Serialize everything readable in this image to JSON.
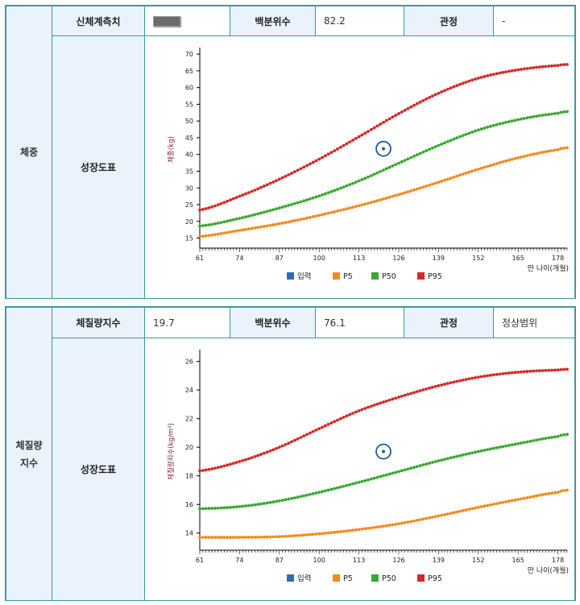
{
  "panels": [
    {
      "category": "체중",
      "measure_label": "신체계측치",
      "measure_value": "",
      "percentile_label": "백분위수",
      "percentile_value": "82.2",
      "judgement_label": "관정",
      "judgement_value": "-",
      "chart_label": "성장도표",
      "chart_data": {
        "type": "line",
        "ylabel": "체중(kg)",
        "xlabel": "만 나이(개월)",
        "x_ticks": [
          "61",
          "74",
          "87",
          "100",
          "113",
          "126",
          "139",
          "152",
          "165",
          "178"
        ],
        "y_ticks": [
          "15",
          "20",
          "25",
          "30",
          "35",
          "40",
          "45",
          "50",
          "55",
          "60",
          "65",
          "70"
        ],
        "xlim": [
          61,
          181
        ],
        "ylim": [
          12,
          71
        ],
        "series": [
          {
            "name": "P5",
            "color": "#f28a1e",
            "x": [
              61,
              74,
              87,
              100,
              113,
              126,
              139,
              152,
              165,
              178,
              181
            ],
            "values": [
              15.5,
              17.3,
              19.3,
              21.8,
              24.7,
              28.0,
              31.7,
              35.6,
              39.0,
              41.4,
              42.0
            ]
          },
          {
            "name": "P50",
            "color": "#3aa832",
            "x": [
              61,
              74,
              87,
              100,
              113,
              126,
              139,
              152,
              165,
              178,
              181
            ],
            "values": [
              18.6,
              20.9,
              24.0,
              27.6,
              32.1,
              37.4,
              42.7,
              47.3,
              50.4,
              52.3,
              52.8
            ]
          },
          {
            "name": "P95",
            "color": "#d42a2a",
            "x": [
              61,
              74,
              87,
              100,
              113,
              126,
              139,
              152,
              165,
              178,
              181
            ],
            "values": [
              23.4,
              27.5,
              32.6,
              38.6,
              45.3,
              52.2,
              58.3,
              62.8,
              65.3,
              66.6,
              66.9
            ]
          }
        ],
        "input_point": {
          "x": 121,
          "y": 41.7
        },
        "legend": [
          "입력",
          "P5",
          "P50",
          "P95"
        ],
        "legend_colors": [
          "#2f6eb3",
          "#f28a1e",
          "#3aa832",
          "#d42a2a"
        ]
      }
    },
    {
      "category": "체질량\n지수",
      "measure_label": "체질량지수",
      "measure_value": "19.7",
      "percentile_label": "백분위수",
      "percentile_value": "76.1",
      "judgement_label": "관정",
      "judgement_value": "정상범위",
      "chart_label": "성장도표",
      "chart_data": {
        "type": "line",
        "ylabel": "체질량지수(kg/m²)",
        "xlabel": "만 나이(개월)",
        "x_ticks": [
          "61",
          "74",
          "87",
          "100",
          "113",
          "126",
          "139",
          "152",
          "165",
          "178"
        ],
        "y_ticks": [
          "14",
          "16",
          "18",
          "20",
          "22",
          "24",
          "26"
        ],
        "xlim": [
          61,
          181
        ],
        "ylim": [
          12.8,
          26.6
        ],
        "series": [
          {
            "name": "P5",
            "color": "#f28a1e",
            "x": [
              61,
              74,
              87,
              100,
              113,
              126,
              139,
              152,
              165,
              178,
              181
            ],
            "values": [
              13.7,
              13.7,
              13.75,
              13.95,
              14.25,
              14.65,
              15.2,
              15.8,
              16.35,
              16.85,
              17.0
            ]
          },
          {
            "name": "P50",
            "color": "#3aa832",
            "x": [
              61,
              74,
              87,
              100,
              113,
              126,
              139,
              152,
              165,
              178,
              181
            ],
            "values": [
              15.7,
              15.85,
              16.25,
              16.85,
              17.55,
              18.3,
              19.05,
              19.7,
              20.25,
              20.75,
              20.9
            ]
          },
          {
            "name": "P95",
            "color": "#d42a2a",
            "x": [
              61,
              74,
              87,
              100,
              113,
              126,
              139,
              152,
              165,
              178,
              181
            ],
            "values": [
              18.35,
              19.0,
              20.0,
              21.3,
              22.55,
              23.5,
              24.3,
              24.9,
              25.25,
              25.4,
              25.45
            ]
          }
        ],
        "input_point": {
          "x": 121,
          "y": 19.7
        },
        "legend": [
          "입력",
          "P5",
          "P50",
          "P95"
        ],
        "legend_colors": [
          "#2f6eb3",
          "#f28a1e",
          "#3aa832",
          "#d42a2a"
        ]
      }
    }
  ]
}
